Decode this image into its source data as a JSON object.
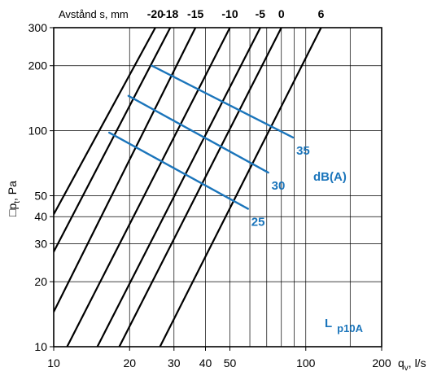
{
  "chart_data": {
    "type": "line",
    "x_scale": "log",
    "y_scale": "log",
    "xlim": [
      10,
      200
    ],
    "ylim": [
      10,
      300
    ],
    "grid": true,
    "x_ticks": [
      10,
      20,
      30,
      40,
      50,
      100,
      200
    ],
    "x_tick_labels": [
      "10",
      "20",
      "30",
      "40",
      "50",
      "100",
      "200"
    ],
    "y_ticks": [
      10,
      20,
      30,
      40,
      50,
      100,
      200,
      300
    ],
    "y_tick_labels": [
      "10",
      "20",
      "30",
      "40",
      "50",
      "100",
      "200",
      "300"
    ],
    "xlabel": "q",
    "xlabel_sub": "v",
    "xlabel_unit": ", l/s",
    "ylabel": "□p",
    "ylabel_sub": "t",
    "ylabel_unit": ", Pa",
    "top_axis_title": "Avstånd s, mm",
    "series": [
      {
        "name": "-20",
        "points": [
          [
            10,
            41
          ],
          [
            25.3,
            300
          ]
        ]
      },
      {
        "name": "-18",
        "points": [
          [
            10,
            27.5
          ],
          [
            29,
            300
          ]
        ]
      },
      {
        "name": "-15",
        "points": [
          [
            10,
            14.5
          ],
          [
            36.5,
            300
          ]
        ]
      },
      {
        "name": "-10",
        "points": [
          [
            11.3,
            10
          ],
          [
            50,
            300
          ]
        ]
      },
      {
        "name": "-5",
        "points": [
          [
            14.9,
            10
          ],
          [
            66,
            300
          ]
        ]
      },
      {
        "name": "0",
        "points": [
          [
            18.2,
            10
          ],
          [
            80,
            300
          ]
        ]
      },
      {
        "name": "6",
        "points": [
          [
            26.4,
            10
          ],
          [
            115,
            300
          ]
        ]
      }
    ],
    "noise_lines": [
      {
        "label": "35",
        "points": [
          [
            24.5,
            200
          ],
          [
            89,
            93
          ]
        ]
      },
      {
        "label": "30",
        "points": [
          [
            19.8,
            145
          ],
          [
            71,
            64
          ]
        ]
      },
      {
        "label": "25",
        "points": [
          [
            16.6,
            98
          ],
          [
            59,
            43.5
          ]
        ]
      }
    ],
    "noise_unit_label": "dB(A)",
    "noise_legend": "L",
    "noise_legend_sub": "p10A",
    "colors": {
      "distance_lines": "#000000",
      "noise_lines": "#1b75bb",
      "grid": "#000000"
    }
  }
}
